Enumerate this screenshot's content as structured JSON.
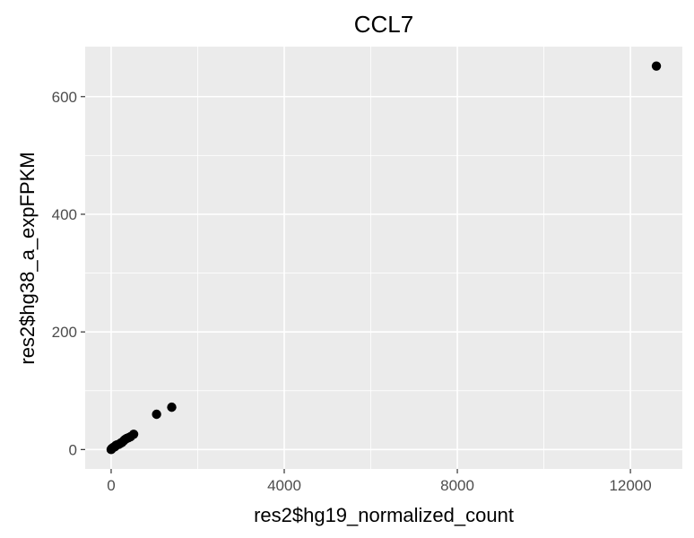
{
  "chart_data": {
    "type": "scatter",
    "title": "CCL7",
    "xlabel": "res2$hg19_normalized_count",
    "ylabel": "res2$hg38_a_expFPKM",
    "xlim": [
      -600,
      13200
    ],
    "ylim": [
      -33,
      685
    ],
    "x_ticks": [
      0,
      4000,
      8000,
      12000
    ],
    "x_tick_labels": [
      "0",
      "4000",
      "8000",
      "12000"
    ],
    "y_ticks": [
      0,
      200,
      400,
      600
    ],
    "y_tick_labels": [
      "0",
      "200",
      "400",
      "600"
    ],
    "grid": true,
    "legend": "none",
    "colors": {
      "panel": "#ebebeb",
      "grid": "#ffffff",
      "point": "#000000",
      "tick_text": "#4d4d4d"
    },
    "points": [
      {
        "x": 0,
        "y": 0
      },
      {
        "x": 10,
        "y": 1
      },
      {
        "x": 20,
        "y": 2
      },
      {
        "x": 40,
        "y": 3
      },
      {
        "x": 60,
        "y": 4
      },
      {
        "x": 90,
        "y": 5
      },
      {
        "x": 110,
        "y": 7
      },
      {
        "x": 140,
        "y": 8
      },
      {
        "x": 180,
        "y": 9
      },
      {
        "x": 220,
        "y": 11
      },
      {
        "x": 250,
        "y": 12
      },
      {
        "x": 290,
        "y": 15
      },
      {
        "x": 320,
        "y": 17
      },
      {
        "x": 360,
        "y": 19
      },
      {
        "x": 400,
        "y": 20
      },
      {
        "x": 450,
        "y": 22
      },
      {
        "x": 520,
        "y": 26
      },
      {
        "x": 1050,
        "y": 60
      },
      {
        "x": 1400,
        "y": 72
      },
      {
        "x": 12600,
        "y": 652
      }
    ]
  }
}
